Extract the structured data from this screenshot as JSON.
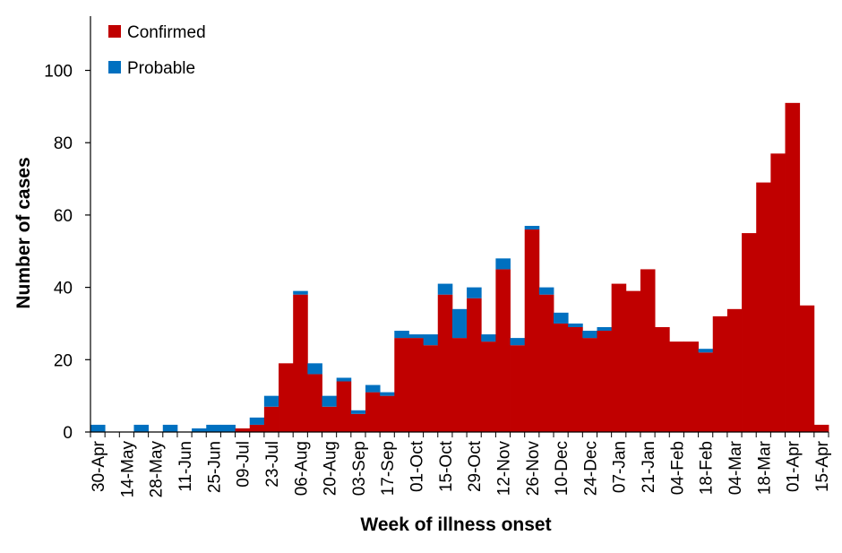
{
  "chart_data": {
    "type": "bar",
    "stacked": true,
    "xlabel": "Week of illness onset",
    "ylabel": "Number of cases",
    "ylim": [
      0,
      115
    ],
    "yticks": [
      0,
      20,
      40,
      60,
      80,
      100
    ],
    "grid": false,
    "legend_position": "top-left",
    "x_tick_labels": [
      "30-Apr",
      "14-May",
      "28-May",
      "11-Jun",
      "25-Jun",
      "09-Jul",
      "23-Jul",
      "06-Aug",
      "20-Aug",
      "03-Sep",
      "17-Sep",
      "01-Oct",
      "15-Oct",
      "29-Oct",
      "12-Nov",
      "26-Nov",
      "10-Dec",
      "24-Dec",
      "07-Jan",
      "21-Jan",
      "04-Feb",
      "18-Feb",
      "04-Mar",
      "18-Mar",
      "01-Apr",
      "15-Apr"
    ],
    "categories": [
      "30-Apr",
      "07-May",
      "14-May",
      "21-May",
      "28-May",
      "04-Jun",
      "11-Jun",
      "18-Jun",
      "25-Jun",
      "02-Jul",
      "09-Jul",
      "16-Jul",
      "23-Jul",
      "30-Jul",
      "06-Aug",
      "13-Aug",
      "20-Aug",
      "27-Aug",
      "03-Sep",
      "10-Sep",
      "17-Sep",
      "24-Sep",
      "01-Oct",
      "08-Oct",
      "15-Oct",
      "22-Oct",
      "29-Oct",
      "05-Nov",
      "12-Nov",
      "19-Nov",
      "26-Nov",
      "03-Dec",
      "10-Dec",
      "17-Dec",
      "24-Dec",
      "31-Dec",
      "07-Jan",
      "14-Jan",
      "21-Jan",
      "28-Jan",
      "04-Feb",
      "11-Feb",
      "18-Feb",
      "25-Feb",
      "04-Mar",
      "11-Mar",
      "18-Mar",
      "25-Mar",
      "01-Apr",
      "08-Apr",
      "15-Apr"
    ],
    "series": [
      {
        "name": "Confirmed",
        "color": "#C00000",
        "values": [
          0,
          0,
          0,
          0,
          0,
          0,
          0,
          0,
          0,
          0,
          1,
          2,
          7,
          19,
          38,
          16,
          7,
          14,
          5,
          11,
          10,
          26,
          26,
          24,
          38,
          26,
          37,
          25,
          45,
          24,
          56,
          38,
          30,
          29,
          26,
          28,
          41,
          39,
          45,
          29,
          25,
          25,
          22,
          32,
          34,
          55,
          69,
          77,
          91,
          35,
          2
        ]
      },
      {
        "name": "Probable",
        "color": "#0070C0",
        "values": [
          2,
          0,
          0,
          2,
          0,
          2,
          0,
          1,
          2,
          2,
          0,
          2,
          3,
          0,
          1,
          3,
          3,
          1,
          1,
          2,
          1,
          2,
          1,
          3,
          3,
          8,
          3,
          2,
          3,
          2,
          1,
          2,
          3,
          1,
          2,
          1,
          0,
          0,
          0,
          0,
          0,
          0,
          1,
          0,
          0,
          0,
          0,
          0,
          0,
          0,
          0
        ]
      }
    ]
  }
}
